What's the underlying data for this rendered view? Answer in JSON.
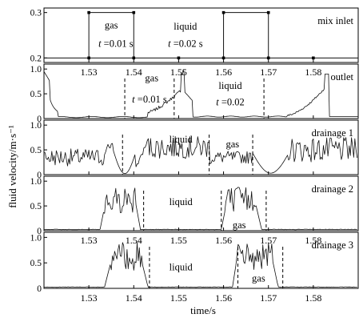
{
  "chart_data": {
    "type": "line",
    "xlabel": "time/s",
    "ylabel": "fluid velocity/m·s⁻¹",
    "xlim": [
      1.52,
      1.59
    ],
    "x_ticks": [
      "1.53",
      "1.54",
      "1.55",
      "1.56",
      "1.57",
      "1.58"
    ],
    "panels": [
      {
        "name": "mix inlet",
        "ylim": [
          0.19,
          0.31
        ],
        "y_ticks": [
          "0.2",
          "0.3"
        ],
        "series_kind": "square",
        "segments": [
          [
            1.53,
            0.3
          ],
          [
            1.54,
            0.3
          ]
        ],
        "segments2": [
          [
            1.56,
            0.3
          ],
          [
            1.57,
            0.3
          ]
        ],
        "base": 0.2,
        "markers_x": [
          1.53,
          1.54,
          1.55,
          1.56,
          1.57,
          1.58
        ],
        "annotations": [
          {
            "text": "gas",
            "x": 1.535,
            "y": 0.265
          },
          {
            "text": "liquid",
            "x": 1.5515,
            "y": 0.262
          },
          {
            "text": "t =0.01 s",
            "x": 1.536,
            "y": 0.224
          },
          {
            "text": "t =0.02  s",
            "x": 1.5515,
            "y": 0.224
          }
        ],
        "dashed_x": []
      },
      {
        "name": "outlet",
        "ylim": [
          0,
          1.1
        ],
        "y_ticks": [
          "0",
          "0.5",
          "1.0"
        ],
        "series_kind": "outlet",
        "dashed_x": [
          1.538,
          1.549,
          1.569
        ],
        "annotations": [
          {
            "text": "gas",
            "x": 1.544,
            "y": 0.75
          },
          {
            "text": "t =0.01 s",
            "x": 1.5435,
            "y": 0.32
          },
          {
            "text": "liquid",
            "x": 1.5615,
            "y": 0.6
          },
          {
            "text": "t =0.02",
            "x": 1.5615,
            "y": 0.27
          }
        ]
      },
      {
        "name": "drainage 1",
        "ylim": [
          0,
          1.1
        ],
        "y_ticks": [
          "0",
          "0.5",
          "1.0"
        ],
        "series_kind": "drain1",
        "dashed_x": [
          1.5375,
          1.5568,
          1.5665
        ],
        "annotations": [
          {
            "text": "liquid",
            "x": 1.5505,
            "y": 0.65
          },
          {
            "text": "gas",
            "x": 1.562,
            "y": 0.55
          }
        ]
      },
      {
        "name": "drainage 2",
        "ylim": [
          0,
          1.1
        ],
        "y_ticks": [
          "0",
          "0.5",
          "1.0"
        ],
        "series_kind": "drain2",
        "dashed_x": [
          1.5422,
          1.5595,
          1.5695
        ],
        "annotations": [
          {
            "text": "liquid",
            "x": 1.5505,
            "y": 0.52
          },
          {
            "text": "gas",
            "x": 1.5635,
            "y": 0.05
          }
        ]
      },
      {
        "name": "drainage 3",
        "ylim": [
          0,
          1.1
        ],
        "y_ticks": [
          "0",
          "0.5",
          "1.0"
        ],
        "series_kind": "drain3",
        "dashed_x": [
          1.5435,
          1.5632,
          1.5732
        ],
        "annotations": [
          {
            "text": "liquid",
            "x": 1.5505,
            "y": 0.35
          },
          {
            "text": "gas",
            "x": 1.5678,
            "y": 0.13
          }
        ]
      }
    ]
  }
}
